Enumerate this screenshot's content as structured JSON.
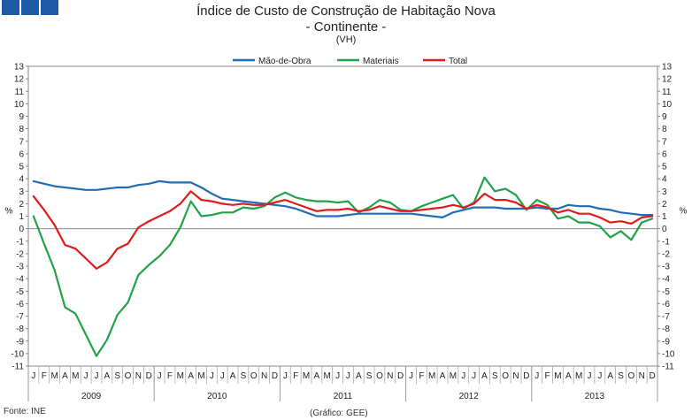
{
  "header": {
    "title": "Índice de Custo de Construção de Habitação Nova",
    "subtitle": "- Continente -",
    "unit_note": "(VH)"
  },
  "footer": {
    "source": "Fonte: INE",
    "credit": "(Gráfico: GEE)"
  },
  "colors": {
    "mao_de_obra": "#1f6db5",
    "materiais": "#21a24a",
    "total": "#e01b1b",
    "header_deco": "#1f5aa6"
  },
  "chart_data": {
    "type": "line",
    "title": "Índice de Custo de Construção de Habitação Nova",
    "subtitle": "- Continente -",
    "ylabel": "%",
    "ylim": [
      -11,
      13
    ],
    "yticks": [
      -11,
      -10,
      -9,
      -8,
      -7,
      -6,
      -5,
      -4,
      -3,
      -2,
      -1,
      0,
      1,
      2,
      3,
      4,
      5,
      6,
      7,
      8,
      9,
      10,
      11,
      12,
      13
    ],
    "grid": false,
    "legend_position": "top",
    "month_labels": [
      "J",
      "F",
      "M",
      "A",
      "M",
      "J",
      "J",
      "A",
      "S",
      "O",
      "N",
      "D"
    ],
    "years": [
      "2009",
      "2010",
      "2011",
      "2012",
      "2013"
    ],
    "series": [
      {
        "name": "Mão-de-Obra",
        "color": "#1f6db5",
        "values": [
          3.8,
          3.6,
          3.4,
          3.3,
          3.2,
          3.1,
          3.1,
          3.2,
          3.3,
          3.3,
          3.5,
          3.6,
          3.8,
          3.7,
          3.7,
          3.7,
          3.3,
          2.8,
          2.4,
          2.3,
          2.2,
          2.1,
          2.0,
          1.9,
          1.8,
          1.6,
          1.3,
          1.0,
          1.0,
          1.0,
          1.1,
          1.2,
          1.2,
          1.2,
          1.2,
          1.2,
          1.2,
          1.1,
          1.0,
          0.9,
          1.3,
          1.5,
          1.7,
          1.7,
          1.7,
          1.6,
          1.6,
          1.6,
          1.7,
          1.6,
          1.6,
          1.9,
          1.8,
          1.8,
          1.6,
          1.5,
          1.3,
          1.2,
          1.1,
          1.1
        ]
      },
      {
        "name": "Materiais",
        "color": "#21a24a",
        "values": [
          1.0,
          -1.2,
          -3.3,
          -6.3,
          -6.8,
          -8.5,
          -10.2,
          -8.9,
          -6.9,
          -5.9,
          -3.7,
          -2.9,
          -2.2,
          -1.3,
          0.1,
          2.2,
          1.0,
          1.1,
          1.3,
          1.3,
          1.7,
          1.6,
          1.8,
          2.5,
          2.9,
          2.5,
          2.3,
          2.2,
          2.2,
          2.1,
          2.2,
          1.3,
          1.7,
          2.3,
          2.1,
          1.5,
          1.4,
          1.8,
          2.1,
          2.4,
          2.7,
          1.6,
          2.1,
          4.1,
          3.0,
          3.2,
          2.7,
          1.5,
          2.3,
          1.9,
          0.8,
          1.0,
          0.5,
          0.5,
          0.2,
          -0.7,
          -0.2,
          -0.9,
          0.5,
          0.8
        ]
      },
      {
        "name": "Total",
        "color": "#e01b1b",
        "values": [
          2.6,
          1.5,
          0.3,
          -1.3,
          -1.6,
          -2.4,
          -3.2,
          -2.7,
          -1.6,
          -1.2,
          0.1,
          0.6,
          1.0,
          1.4,
          2.0,
          3.0,
          2.3,
          2.2,
          2.0,
          1.9,
          2.0,
          1.9,
          1.9,
          2.1,
          2.3,
          2.0,
          1.7,
          1.4,
          1.5,
          1.5,
          1.6,
          1.4,
          1.5,
          1.8,
          1.6,
          1.4,
          1.4,
          1.5,
          1.6,
          1.7,
          1.9,
          1.7,
          2.0,
          2.8,
          2.3,
          2.3,
          2.1,
          1.6,
          1.9,
          1.7,
          1.3,
          1.5,
          1.2,
          1.2,
          0.9,
          0.5,
          0.6,
          0.4,
          0.9,
          1.0
        ]
      }
    ]
  }
}
